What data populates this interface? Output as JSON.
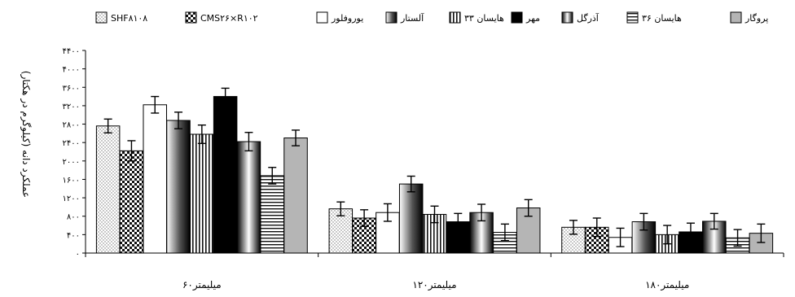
{
  "chart_data": {
    "type": "bar",
    "ylabel": "عملکرد دانه (کیلوگرم در هکتار)",
    "ylim": [
      0,
      4400
    ],
    "yticks": [
      0,
      400,
      800,
      1200,
      1600,
      2000,
      2400,
      2800,
      3200,
      3600,
      4000,
      4400
    ],
    "ytick_labels": [
      "۰",
      "۴۰۰",
      "۸۰۰",
      "۱۲۰۰",
      "۱۶۰۰",
      "۲۰۰۰",
      "۲۴۰۰",
      "۲۸۰۰",
      "۳۲۰۰",
      "۳۶۰۰",
      "۴۰۰۰",
      "۴۴۰۰"
    ],
    "categories": [
      "۶۰میلیمتر",
      "۱۲۰میلیمتر",
      "۱۸۰میلیمتر"
    ],
    "legend_position": "top",
    "series": [
      {
        "name": "SHF۸۱۰۸",
        "pattern": "dots",
        "values": [
          2760,
          960,
          560
        ],
        "errors": [
          150,
          150,
          150
        ]
      },
      {
        "name": "CMS۲۶×R۱۰۲",
        "pattern": "checker",
        "values": [
          2220,
          760,
          560
        ],
        "errors": [
          220,
          180,
          200
        ]
      },
      {
        "name": "یوروفلور",
        "pattern": "white",
        "values": [
          3220,
          880,
          340
        ],
        "errors": [
          180,
          190,
          200
        ]
      },
      {
        "name": "آلستار",
        "pattern": "vgrad",
        "values": [
          2880,
          1500,
          680
        ],
        "errors": [
          180,
          170,
          180
        ]
      },
      {
        "name": "هایسان ۳۳",
        "pattern": "vlines",
        "values": [
          2580,
          840,
          400
        ],
        "errors": [
          200,
          180,
          200
        ]
      },
      {
        "name": "مهر",
        "pattern": "black",
        "values": [
          3400,
          680,
          460
        ],
        "errors": [
          180,
          180,
          190
        ]
      },
      {
        "name": "آذرگل",
        "pattern": "hgrad",
        "values": [
          2420,
          880,
          690
        ],
        "errors": [
          200,
          180,
          170
        ]
      },
      {
        "name": "هایسان ۳۶",
        "pattern": "hlines",
        "values": [
          1680,
          450,
          330
        ],
        "errors": [
          180,
          180,
          180
        ]
      },
      {
        "name": "پروگار",
        "pattern": "gray",
        "values": [
          2500,
          980,
          430
        ],
        "errors": [
          170,
          180,
          200
        ]
      }
    ]
  }
}
